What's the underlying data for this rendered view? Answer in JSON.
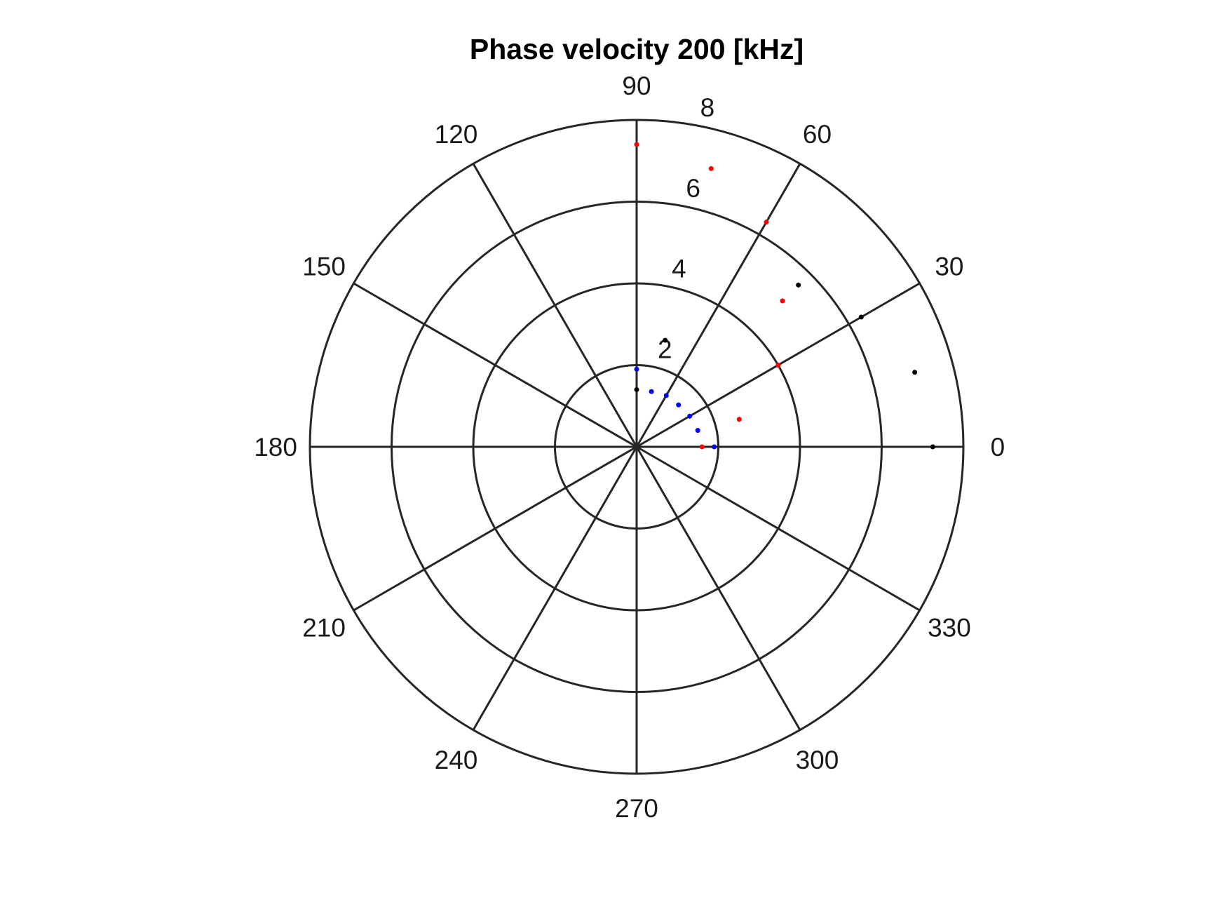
{
  "chart_data": {
    "type": "scatter",
    "subtype": "polar",
    "title": "Phase velocity 200 [kHz]",
    "theta_ticks": [
      0,
      30,
      60,
      90,
      120,
      150,
      180,
      210,
      240,
      270,
      300,
      330
    ],
    "theta_tick_labels": [
      "0",
      "30",
      "60",
      "90",
      "120",
      "150",
      "180",
      "210",
      "240",
      "270",
      "300",
      "330"
    ],
    "r_ticks": [
      2,
      4,
      6,
      8
    ],
    "r_tick_labels": [
      "2",
      "4",
      "6",
      "8"
    ],
    "rlim": [
      0,
      8
    ],
    "r_label_angle_deg": 80,
    "grid": true,
    "series": [
      {
        "color": "#000000",
        "points": [
          {
            "theta": 0,
            "r": 7.25
          },
          {
            "theta": 15,
            "r": 7.05
          },
          {
            "theta": 30,
            "r": 6.35
          },
          {
            "theta": 45,
            "r": 5.6
          },
          {
            "theta": 75,
            "r": 2.7
          },
          {
            "theta": 90,
            "r": 1.4
          }
        ]
      },
      {
        "color": "#ff0000",
        "points": [
          {
            "theta": 0,
            "r": 1.6
          },
          {
            "theta": 15,
            "r": 2.6
          },
          {
            "theta": 30,
            "r": 4.0
          },
          {
            "theta": 45,
            "r": 5.05
          },
          {
            "theta": 60,
            "r": 6.35
          },
          {
            "theta": 75,
            "r": 7.05
          },
          {
            "theta": 90,
            "r": 7.4
          }
        ]
      },
      {
        "color": "#0000ff",
        "points": [
          {
            "theta": 0,
            "r": 1.9
          },
          {
            "theta": 15,
            "r": 1.55
          },
          {
            "theta": 30,
            "r": 1.5
          },
          {
            "theta": 45,
            "r": 1.45
          },
          {
            "theta": 60,
            "r": 1.45
          },
          {
            "theta": 75,
            "r": 1.4
          },
          {
            "theta": 90,
            "r": 1.9
          }
        ]
      }
    ]
  }
}
